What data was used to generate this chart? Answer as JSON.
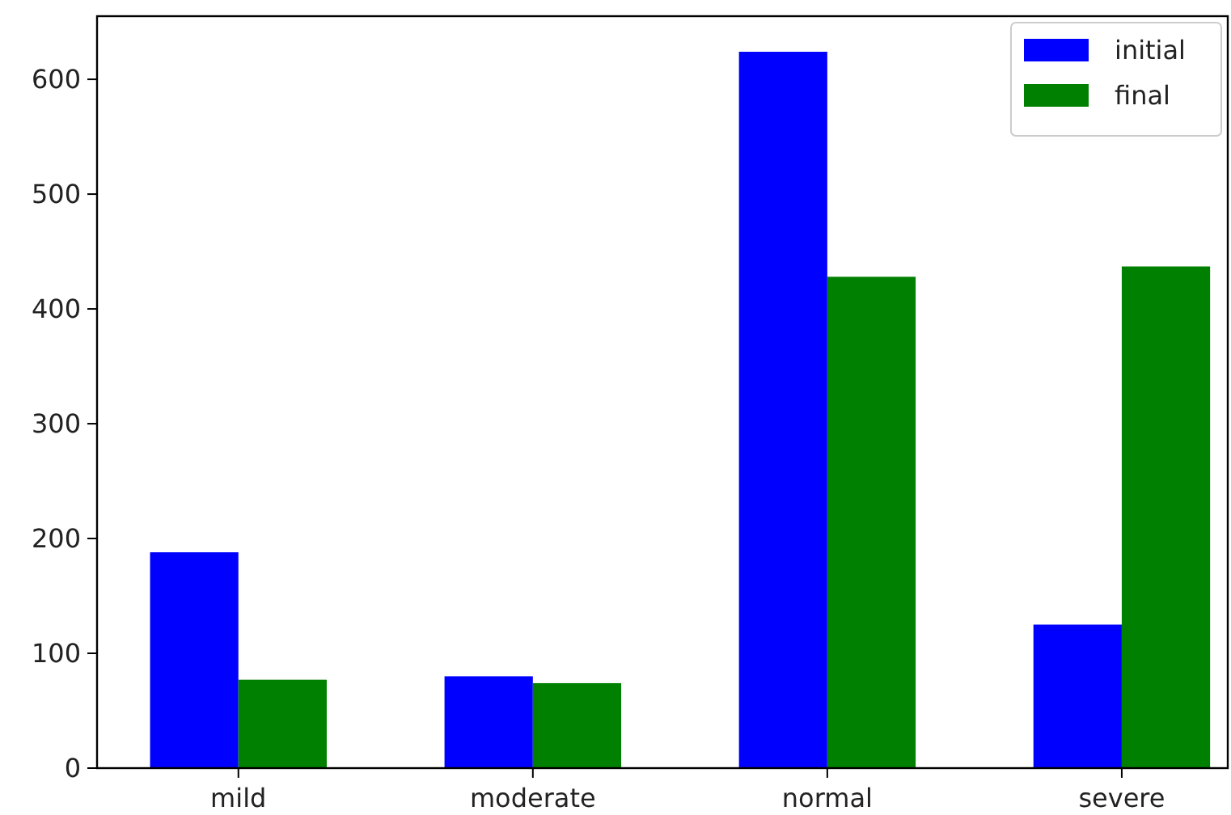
{
  "chart_data": {
    "type": "bar",
    "categories": [
      "mild",
      "moderate",
      "normal",
      "severe"
    ],
    "series": [
      {
        "name": "initial",
        "color": "#0000ff",
        "values": [
          188,
          80,
          624,
          125
        ]
      },
      {
        "name": "final",
        "color": "#008000",
        "values": [
          77,
          74,
          428,
          437
        ]
      }
    ],
    "ylim": [
      0,
      655
    ],
    "yticks": [
      0,
      100,
      200,
      300,
      400,
      500,
      600
    ],
    "grid": false,
    "legend": "top right"
  }
}
